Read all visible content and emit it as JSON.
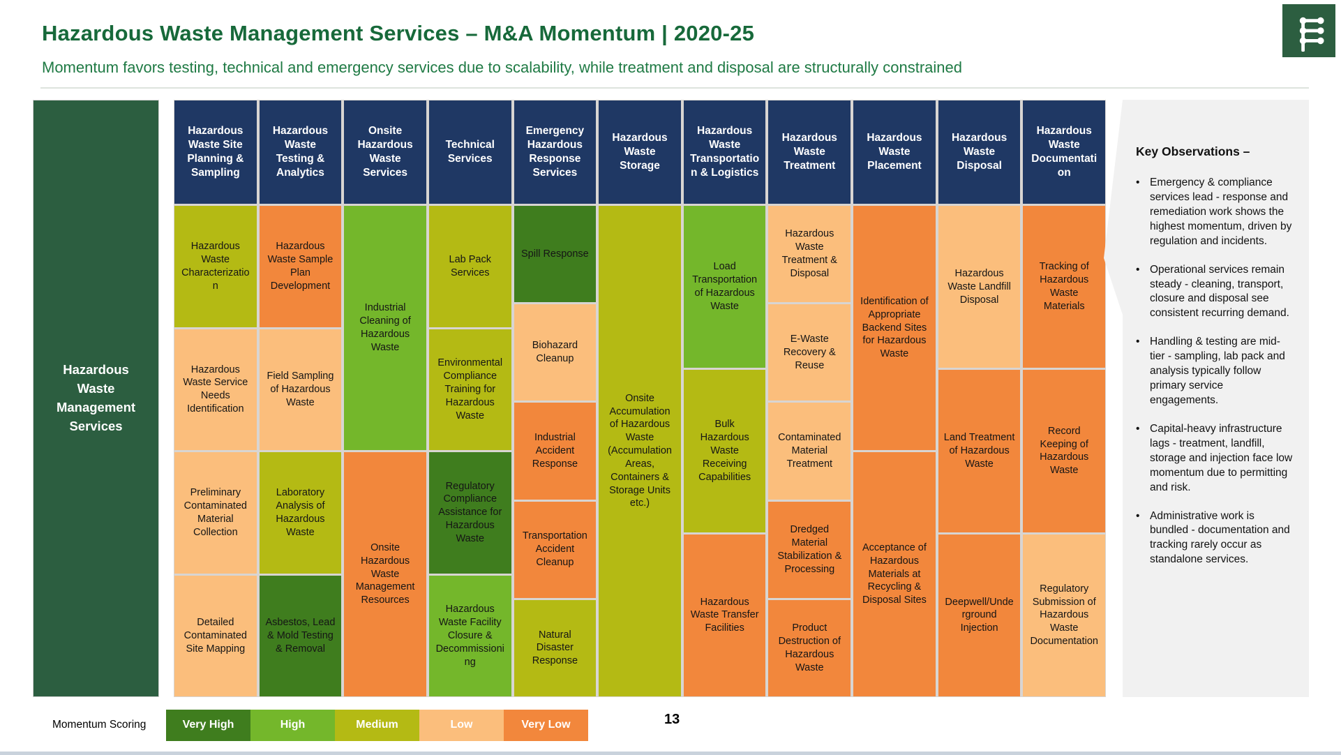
{
  "slide": {
    "title": "Hazardous Waste Management Services – M&A Momentum | 2020-25",
    "subtitle": "Momentum favors testing, technical and emergency services due to scalability, while treatment and disposal are structurally constrained",
    "page_number": "13"
  },
  "sidebar": {
    "label": "Hazardous Waste Management Services"
  },
  "colors": {
    "navy_header": "#1F3864",
    "sidebar_green": "#2C5E40",
    "title_green": "#17693A",
    "panel_gray": "#F1F1F1",
    "levels": {
      "very_high": "#3F7D1E",
      "high": "#74B72B",
      "medium": "#B4BA14",
      "low": "#FBBE7C",
      "very_low": "#F2873C"
    }
  },
  "chart_data": {
    "type": "heatmap",
    "title": "Hazardous Waste Management Services – M&A Momentum | 2020-25",
    "root": "Hazardous Waste Management Services",
    "scale": [
      "Very High",
      "High",
      "Medium",
      "Low",
      "Very Low"
    ],
    "legend_position": "bottom",
    "columns": [
      {
        "header": "Hazardous Waste Site Planning & Sampling",
        "cells": [
          {
            "label": "Hazardous Waste Characterization",
            "score": "medium",
            "span": 15
          },
          {
            "label": "Hazardous Waste Service Needs Identification",
            "score": "low",
            "span": 15
          },
          {
            "label": "Preliminary Contaminated Material Collection",
            "score": "low",
            "span": 15
          },
          {
            "label": "Detailed Contaminated Site Mapping",
            "score": "low",
            "span": 15
          }
        ]
      },
      {
        "header": "Hazardous Waste Testing & Analytics",
        "cells": [
          {
            "label": "Hazardous Waste Sample Plan Development",
            "score": "very_low",
            "span": 15
          },
          {
            "label": "Field Sampling of Hazardous Waste",
            "score": "low",
            "span": 15
          },
          {
            "label": "Laboratory Analysis of Hazardous Waste",
            "score": "medium",
            "span": 15
          },
          {
            "label": "Asbestos, Lead & Mold Testing & Removal",
            "score": "very_high",
            "span": 15
          }
        ]
      },
      {
        "header": "Onsite Hazardous Waste Services",
        "cells": [
          {
            "label": "Industrial Cleaning of Hazardous Waste",
            "score": "high",
            "span": 30
          },
          {
            "label": "Onsite Hazardous Waste Management Resources",
            "score": "very_low",
            "span": 30
          }
        ]
      },
      {
        "header": "Technical Services",
        "cells": [
          {
            "label": "Lab Pack Services",
            "score": "medium",
            "span": 15
          },
          {
            "label": "Environmental Compliance Training for Hazardous Waste",
            "score": "medium",
            "span": 15
          },
          {
            "label": "Regulatory Compliance Assistance for Hazardous Waste",
            "score": "very_high",
            "span": 15
          },
          {
            "label": "Hazardous Waste Facility Closure & Decommissioning",
            "score": "high",
            "span": 15
          }
        ]
      },
      {
        "header": "Emergency Hazardous Response Services",
        "cells": [
          {
            "label": "Spill Response",
            "score": "very_high",
            "span": 12
          },
          {
            "label": "Biohazard Cleanup",
            "score": "low",
            "span": 12
          },
          {
            "label": "Industrial Accident Response",
            "score": "very_low",
            "span": 12
          },
          {
            "label": "Transportation Accident Cleanup",
            "score": "very_low",
            "span": 12
          },
          {
            "label": "Natural Disaster Response",
            "score": "medium",
            "span": 12
          }
        ]
      },
      {
        "header": "Hazardous Waste Storage",
        "cells": [
          {
            "label": "Onsite Accumulation of Hazardous Waste (Accumulation Areas, Containers & Storage Units etc.)",
            "score": "medium",
            "span": 60
          }
        ]
      },
      {
        "header": "Hazardous Waste Transportation & Logistics",
        "cells": [
          {
            "label": "Load Transportation of Hazardous Waste",
            "score": "high",
            "span": 20
          },
          {
            "label": "Bulk Hazardous Waste Receiving Capabilities",
            "score": "medium",
            "span": 20
          },
          {
            "label": "Hazardous Waste Transfer Facilities",
            "score": "very_low",
            "span": 20
          }
        ]
      },
      {
        "header": "Hazardous Waste Treatment",
        "cells": [
          {
            "label": "Hazardous Waste Treatment & Disposal",
            "score": "low",
            "span": 12
          },
          {
            "label": "E-Waste Recovery & Reuse",
            "score": "low",
            "span": 12
          },
          {
            "label": "Contaminated Material Treatment",
            "score": "low",
            "span": 12
          },
          {
            "label": "Dredged Material Stabilization & Processing",
            "score": "very_low",
            "span": 12
          },
          {
            "label": "Product Destruction of Hazardous Waste",
            "score": "very_low",
            "span": 12
          }
        ]
      },
      {
        "header": "Hazardous Waste Placement",
        "cells": [
          {
            "label": "Identification of Appropriate Backend Sites for Hazardous Waste",
            "score": "very_low",
            "span": 30
          },
          {
            "label": "Acceptance of Hazardous Materials at Recycling & Disposal Sites",
            "score": "very_low",
            "span": 30
          }
        ]
      },
      {
        "header": "Hazardous Waste Disposal",
        "cells": [
          {
            "label": "Hazardous Waste Landfill Disposal",
            "score": "low",
            "span": 20
          },
          {
            "label": "Land Treatment of Hazardous Waste",
            "score": "very_low",
            "span": 20
          },
          {
            "label": "Deepwell/Underground Injection",
            "score": "very_low",
            "span": 20
          }
        ]
      },
      {
        "header": "Hazardous Waste Documentation",
        "cells": [
          {
            "label": "Tracking of Hazardous Waste Materials",
            "score": "very_low",
            "span": 20
          },
          {
            "label": "Record Keeping of Hazardous Waste",
            "score": "very_low",
            "span": 20
          },
          {
            "label": "Regulatory Submission of Hazardous Waste Documentation",
            "score": "low",
            "span": 20
          }
        ]
      }
    ]
  },
  "observations": {
    "title": "Key Observations –",
    "bullets": [
      "Emergency & compliance services lead - response and remediation work shows the highest momentum, driven by regulation and incidents.",
      "Operational services remain steady - cleaning, transport, closure and disposal see consistent recurring demand.",
      "Handling & testing are mid-tier - sampling, lab pack and analysis typically follow primary service engagements.",
      "Capital-heavy infrastructure lags - treatment, landfill, storage and injection face low momentum due to permitting and risk.",
      "Administrative work is bundled - documentation and tracking rarely occur as standalone services."
    ]
  },
  "legend": {
    "label": "Momentum Scoring",
    "items": [
      {
        "label": "Very High",
        "level": "very_high"
      },
      {
        "label": "High",
        "level": "high"
      },
      {
        "label": "Medium",
        "level": "medium"
      },
      {
        "label": "Low",
        "level": "low"
      },
      {
        "label": "Very Low",
        "level": "very_low"
      }
    ]
  }
}
